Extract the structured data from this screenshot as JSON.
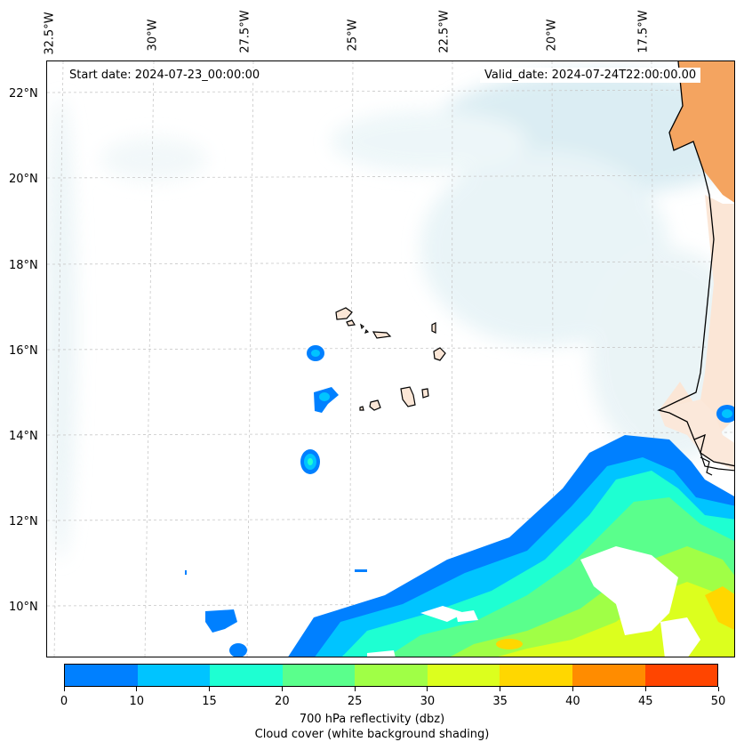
{
  "info": {
    "start_date": "Start date: 2024-07-23_00:00:00",
    "valid_date": "Valid_date: 2024-07-24T22:00:00.00"
  },
  "longitude_labels": [
    "32.5°W",
    "30°W",
    "27.5°W",
    "25°W",
    "22.5°W",
    "20°W",
    "17.5°W"
  ],
  "latitude_labels": [
    "22°N",
    "20°N",
    "18°N",
    "16°N",
    "14°N",
    "12°N",
    "10°N"
  ],
  "colorbar": {
    "ticks": [
      "0",
      "10",
      "15",
      "20",
      "25",
      "30",
      "35",
      "40",
      "45",
      "50"
    ],
    "colors": [
      "#0080ff",
      "#00c4ff",
      "#1effd2",
      "#5aff8c",
      "#a0ff46",
      "#dcff1e",
      "#ffd700",
      "#ff8c00",
      "#ff4500"
    ],
    "label": "700 hPa reflectivity (dbz)",
    "sublabel": "Cloud cover (white background shading)"
  },
  "colors": {
    "land": "#f4a460",
    "cloud_shading": "#d7ecf2",
    "grid": "#c8c8c8"
  }
}
